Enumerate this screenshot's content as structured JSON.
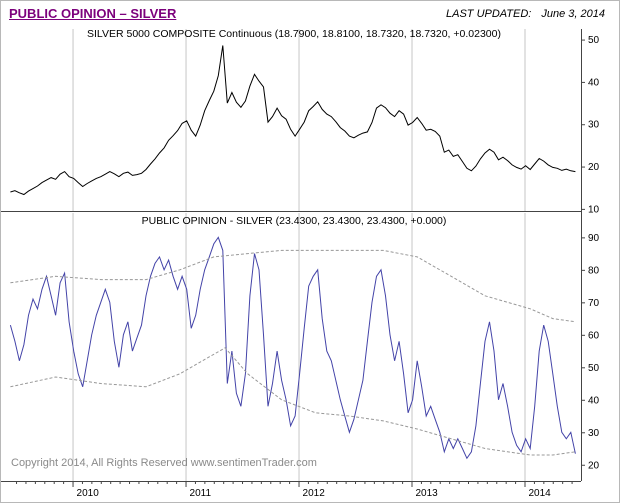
{
  "header": {
    "title": "PUBLIC OPINION – SILVER",
    "last_updated_label": "LAST UPDATED:",
    "last_updated_date": "June 3, 2014"
  },
  "footer": {
    "copyright": "Copyright 2014, All Rights Reserved  www.sentimenTrader.com"
  },
  "colors": {
    "header_title": "#7c007c",
    "price_line": "#000000",
    "opinion_line": "#4343a8",
    "band_line": "#989898",
    "grid": "#c6c6c6",
    "axis": "#444444"
  },
  "chart_data": [
    {
      "type": "line",
      "title": "SILVER 5000 COMPOSITE Continuous (18.7900, 18.8100, 18.7320, 18.7320, +0.02300)",
      "x_range": [
        2009.42,
        2014.5
      ],
      "y_range": [
        9.5,
        52.5
      ],
      "x_ticks": [
        2010,
        2011,
        2012,
        2013,
        2014
      ],
      "y_ticks": [
        10,
        20,
        30,
        40,
        50
      ],
      "legend_position": "none",
      "grid": "vertical-years",
      "series": [
        {
          "name": "silver-price",
          "color": "#000000",
          "x_start": 2009.45,
          "x_step": 0.04,
          "values": [
            14.0,
            14.3,
            13.8,
            13.4,
            14.2,
            14.8,
            15.4,
            16.2,
            16.8,
            17.4,
            17.0,
            18.2,
            18.8,
            17.6,
            17.2,
            16.2,
            15.3,
            16.0,
            16.6,
            17.2,
            17.6,
            18.2,
            18.8,
            18.3,
            17.6,
            18.4,
            18.7,
            17.9,
            18.1,
            18.4,
            19.3,
            20.6,
            21.8,
            23.2,
            24.4,
            26.2,
            27.3,
            28.5,
            30.2,
            30.8,
            28.6,
            27.2,
            29.8,
            33.2,
            35.6,
            37.8,
            41.5,
            48.6,
            35.0,
            37.5,
            35.2,
            34.0,
            35.5,
            39.0,
            41.8,
            40.2,
            38.8,
            30.5,
            31.8,
            33.8,
            32.0,
            31.2,
            28.8,
            27.2,
            28.8,
            30.5,
            33.2,
            34.2,
            35.3,
            33.5,
            32.4,
            31.8,
            30.6,
            29.2,
            28.4,
            27.2,
            26.8,
            27.4,
            27.9,
            28.2,
            30.4,
            33.8,
            34.6,
            33.9,
            32.6,
            31.8,
            33.2,
            32.4,
            29.8,
            30.4,
            31.6,
            30.2,
            28.6,
            28.8,
            28.3,
            27.2,
            23.4,
            23.9,
            22.4,
            22.8,
            21.2,
            19.6,
            19.0,
            20.1,
            21.8,
            23.2,
            24.1,
            23.4,
            21.6,
            22.2,
            21.4,
            20.4,
            19.8,
            19.4,
            20.2,
            19.3,
            20.6,
            21.9,
            21.3,
            20.4,
            19.8,
            19.6,
            19.1,
            19.4,
            19.0,
            18.8
          ]
        }
      ]
    },
    {
      "type": "line",
      "title": "PUBLIC OPINION - SILVER (23.4300, 23.4300, 23.4300, +0.000)",
      "x_range": [
        2009.42,
        2014.5
      ],
      "y_range": [
        15,
        97.5
      ],
      "x_ticks": [
        2010,
        2011,
        2012,
        2013,
        2014
      ],
      "y_ticks": [
        20,
        30,
        40,
        50,
        60,
        70,
        80,
        90
      ],
      "legend_position": "none",
      "grid": "vertical-years",
      "series": [
        {
          "name": "public-opinion",
          "color": "#4343a8",
          "x_start": 2009.45,
          "x_step": 0.04,
          "values": [
            63,
            58,
            52,
            57,
            66,
            71,
            68,
            74,
            78,
            72,
            66,
            76,
            79,
            64,
            55,
            48,
            44,
            52,
            60,
            66,
            70,
            74,
            70,
            58,
            50,
            60,
            64,
            55,
            59,
            63,
            72,
            78,
            82,
            84,
            80,
            83,
            78,
            74,
            78,
            74,
            62,
            66,
            74,
            80,
            84,
            88,
            90,
            86,
            45,
            55,
            42,
            38,
            48,
            72,
            85,
            80,
            60,
            38,
            45,
            55,
            46,
            40,
            32,
            35,
            48,
            62,
            75,
            78,
            80,
            65,
            55,
            52,
            46,
            40,
            35,
            30,
            34,
            40,
            46,
            58,
            70,
            78,
            80,
            72,
            60,
            52,
            58,
            48,
            36,
            40,
            52,
            44,
            35,
            38,
            34,
            30,
            24,
            28,
            25,
            28,
            25,
            22,
            24,
            32,
            45,
            58,
            64,
            55,
            40,
            45,
            38,
            30,
            26,
            24,
            28,
            25,
            38,
            55,
            63,
            58,
            48,
            38,
            30,
            28,
            30,
            23.4
          ]
        },
        {
          "name": "upper-band",
          "color": "#989898",
          "dash": true,
          "x": [
            2009.45,
            2009.85,
            2010.25,
            2010.65,
            2010.95,
            2011.25,
            2011.55,
            2011.85,
            2012.15,
            2012.45,
            2012.75,
            2013.05,
            2013.25,
            2013.45,
            2013.65,
            2013.85,
            2014.05,
            2014.25,
            2014.45
          ],
          "values": [
            76,
            78,
            77,
            77,
            80,
            84,
            85,
            86,
            86,
            86,
            86,
            84,
            80,
            76,
            72,
            70,
            68,
            65,
            64
          ]
        },
        {
          "name": "lower-band",
          "color": "#989898",
          "dash": true,
          "x": [
            2009.45,
            2009.85,
            2010.25,
            2010.65,
            2010.95,
            2011.25,
            2011.35,
            2011.55,
            2011.85,
            2012.15,
            2012.45,
            2012.75,
            2013.05,
            2013.25,
            2013.45,
            2013.65,
            2013.85,
            2014.05,
            2014.25,
            2014.45
          ],
          "values": [
            44,
            47,
            45,
            44,
            48,
            54,
            56,
            48,
            40,
            36,
            35,
            33.5,
            31,
            29,
            27,
            25,
            24,
            23,
            23,
            24
          ]
        }
      ]
    }
  ]
}
